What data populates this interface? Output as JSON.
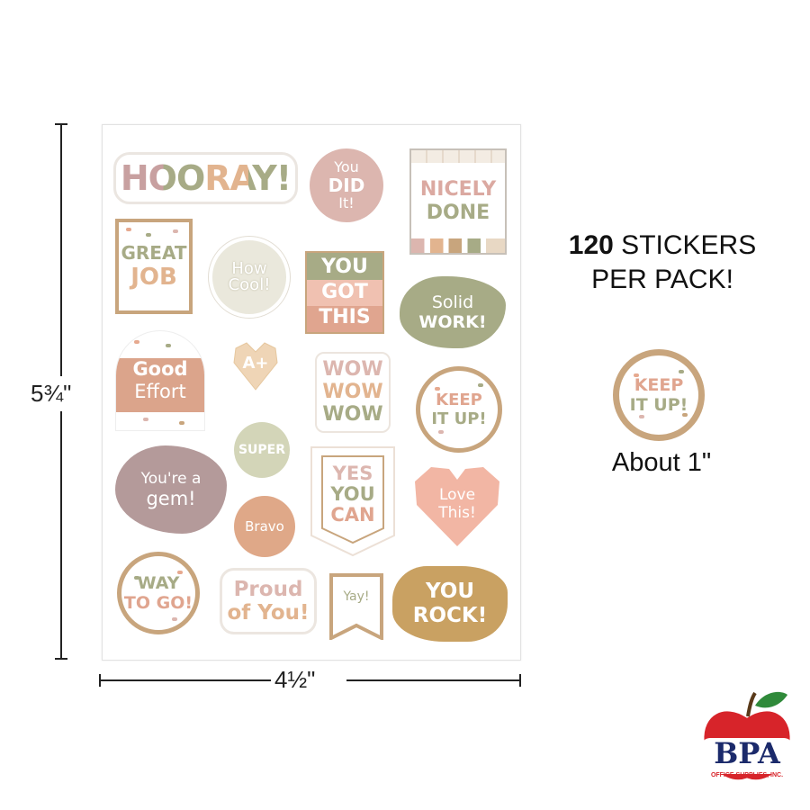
{
  "dimensions": {
    "height_label": "5¾\"",
    "width_label": "4½\""
  },
  "pack_info": {
    "count": "120",
    "line1_rest": " STICKERS",
    "line2": "PER PACK!"
  },
  "sample": {
    "sticker_line1": "KEEP",
    "sticker_line2": "IT UP!",
    "size_label": "About 1\""
  },
  "logo": {
    "name": "BPA",
    "subtitle": "OFFICE SUPPLIES, INC."
  },
  "stickers": {
    "hooray": "HOORAY!",
    "you_did_it": [
      "You",
      "DID",
      "It!"
    ],
    "nicely_done": [
      "NICELY",
      "DONE"
    ],
    "great_job": [
      "GREAT",
      "JOB"
    ],
    "how_cool": [
      "How",
      "Cool!"
    ],
    "you_got_this": [
      "YOU",
      "GOT",
      "THIS"
    ],
    "solid_work": [
      "Solid",
      "WORK!"
    ],
    "good_effort": [
      "Good",
      "Effort"
    ],
    "a_plus": "A+",
    "wow": [
      "WOW",
      "WOW",
      "WOW"
    ],
    "keep_it_up": [
      "KEEP",
      "IT UP!"
    ],
    "super": "SUPER",
    "youre_a_gem": [
      "You're a",
      "gem!"
    ],
    "yes_you_can": [
      "YES",
      "YOU",
      "CAN"
    ],
    "love_this": [
      "Love",
      "This!"
    ],
    "bravo": "Bravo",
    "way_to_go": [
      "WAY",
      "TO GO!"
    ],
    "proud_of_you": [
      "Proud",
      "of You!"
    ],
    "yay": "Yay!",
    "you_rock": [
      "YOU",
      "ROCK!"
    ]
  },
  "colors": {
    "sage": "#a7ab86",
    "blush": "#d8b2a8",
    "peach": "#e6a98f",
    "tan": "#c8a57d",
    "mauve": "#b49a9a",
    "mustard": "#c9a162"
  }
}
